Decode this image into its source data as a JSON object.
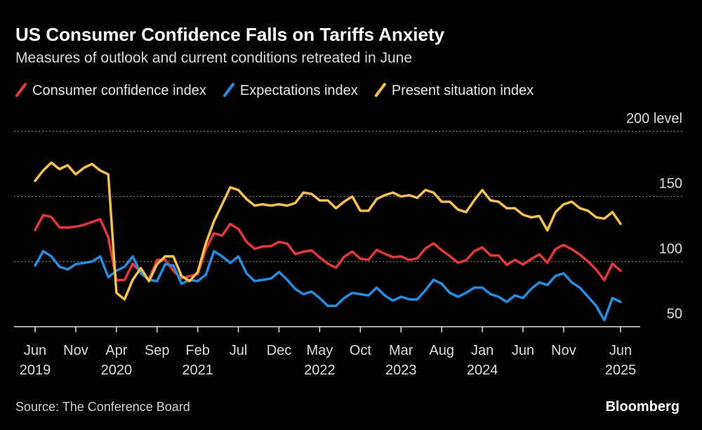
{
  "chart_data": {
    "type": "line",
    "title": "US Consumer Confidence Falls on Tariffs Anxiety",
    "subtitle": "Measures of outlook and current conditions retreated in June",
    "source": "Source: The Conference Board",
    "logo": "Bloomberg",
    "categories": [
      "Jun\n2019",
      null,
      null,
      null,
      null,
      "Nov",
      null,
      null,
      null,
      null,
      "Apr\n2020",
      null,
      null,
      null,
      null,
      "Sep",
      null,
      null,
      null,
      null,
      "Feb\n2021",
      null,
      null,
      null,
      null,
      "Jul",
      null,
      null,
      null,
      null,
      "Dec",
      null,
      null,
      null,
      null,
      "May\n2022",
      null,
      null,
      null,
      null,
      "Oct",
      null,
      null,
      null,
      null,
      "Mar\n2023",
      null,
      null,
      null,
      null,
      "Aug",
      null,
      null,
      null,
      null,
      "Jan\n2024",
      null,
      null,
      null,
      null,
      "Jun",
      null,
      null,
      null,
      null,
      "Nov",
      null,
      null,
      null,
      null,
      null,
      null,
      "Jun\n2025"
    ],
    "series": [
      {
        "name": "Consumer confidence index",
        "color": "#e8353b",
        "values": [
          124.3,
          135.7,
          134.2,
          126.3,
          126.1,
          126.8,
          128.2,
          130.4,
          132.6,
          118.8,
          85.7,
          85.9,
          98.3,
          91.7,
          86.3,
          101.3,
          101.4,
          92.9,
          87.1,
          88.9,
          90.4,
          109.7,
          121.7,
          120.0,
          128.9,
          125.1,
          115.2,
          109.8,
          111.6,
          111.9,
          115.2,
          113.8,
          105.7,
          107.6,
          108.6,
          103.2,
          98.4,
          95.3,
          103.6,
          107.8,
          102.2,
          101.4,
          109.0,
          106.0,
          103.4,
          104.0,
          101.3,
          102.5,
          110.1,
          114.0,
          108.7,
          104.3,
          99.1,
          101.0,
          108.0,
          110.9,
          104.8,
          104.7,
          97.5,
          101.3,
          97.8,
          101.9,
          105.6,
          99.2,
          109.6,
          112.8,
          109.5,
          105.3,
          100.1,
          93.9,
          85.7,
          98.4,
          93.0
        ]
      },
      {
        "name": "Expectations index",
        "color": "#1f8fe5",
        "values": [
          97,
          108,
          104,
          96,
          94,
          98,
          99,
          100,
          104,
          88,
          93,
          96,
          104,
          91,
          86,
          85,
          98,
          97,
          83,
          86,
          85,
          90,
          108,
          104,
          99,
          104,
          91,
          85,
          86,
          87,
          92,
          86,
          79,
          75,
          77,
          72,
          66,
          66,
          72,
          76,
          75,
          74,
          80,
          74,
          70,
          73,
          71,
          71,
          78,
          86,
          83,
          76,
          73,
          76,
          80,
          80,
          75,
          73,
          69,
          74,
          72,
          79,
          84,
          82,
          89,
          91,
          84,
          80,
          73,
          66,
          55,
          72,
          69
        ]
      },
      {
        "name": "Present situation index",
        "color": "#f6c244",
        "values": [
          162,
          170,
          176,
          171,
          174,
          167,
          172,
          175,
          170,
          167,
          76,
          71,
          86,
          95,
          85,
          98,
          104,
          104,
          89,
          85,
          92,
          114,
          131,
          144,
          157,
          155,
          148,
          143,
          144,
          143,
          144,
          143,
          145,
          153,
          152,
          147,
          147,
          141,
          146,
          150,
          139,
          139,
          148,
          151,
          153,
          150,
          151,
          149,
          155,
          153,
          146,
          146,
          140,
          138,
          147,
          155,
          147,
          146,
          141,
          141,
          136,
          134,
          135,
          124,
          138,
          144,
          146,
          141,
          139,
          134,
          133,
          138,
          129
        ]
      }
    ],
    "ylim": [
      50,
      200
    ],
    "yticks": [
      50,
      100,
      150,
      {
        "value": 200,
        "label": "200 level"
      }
    ],
    "grid": true
  }
}
